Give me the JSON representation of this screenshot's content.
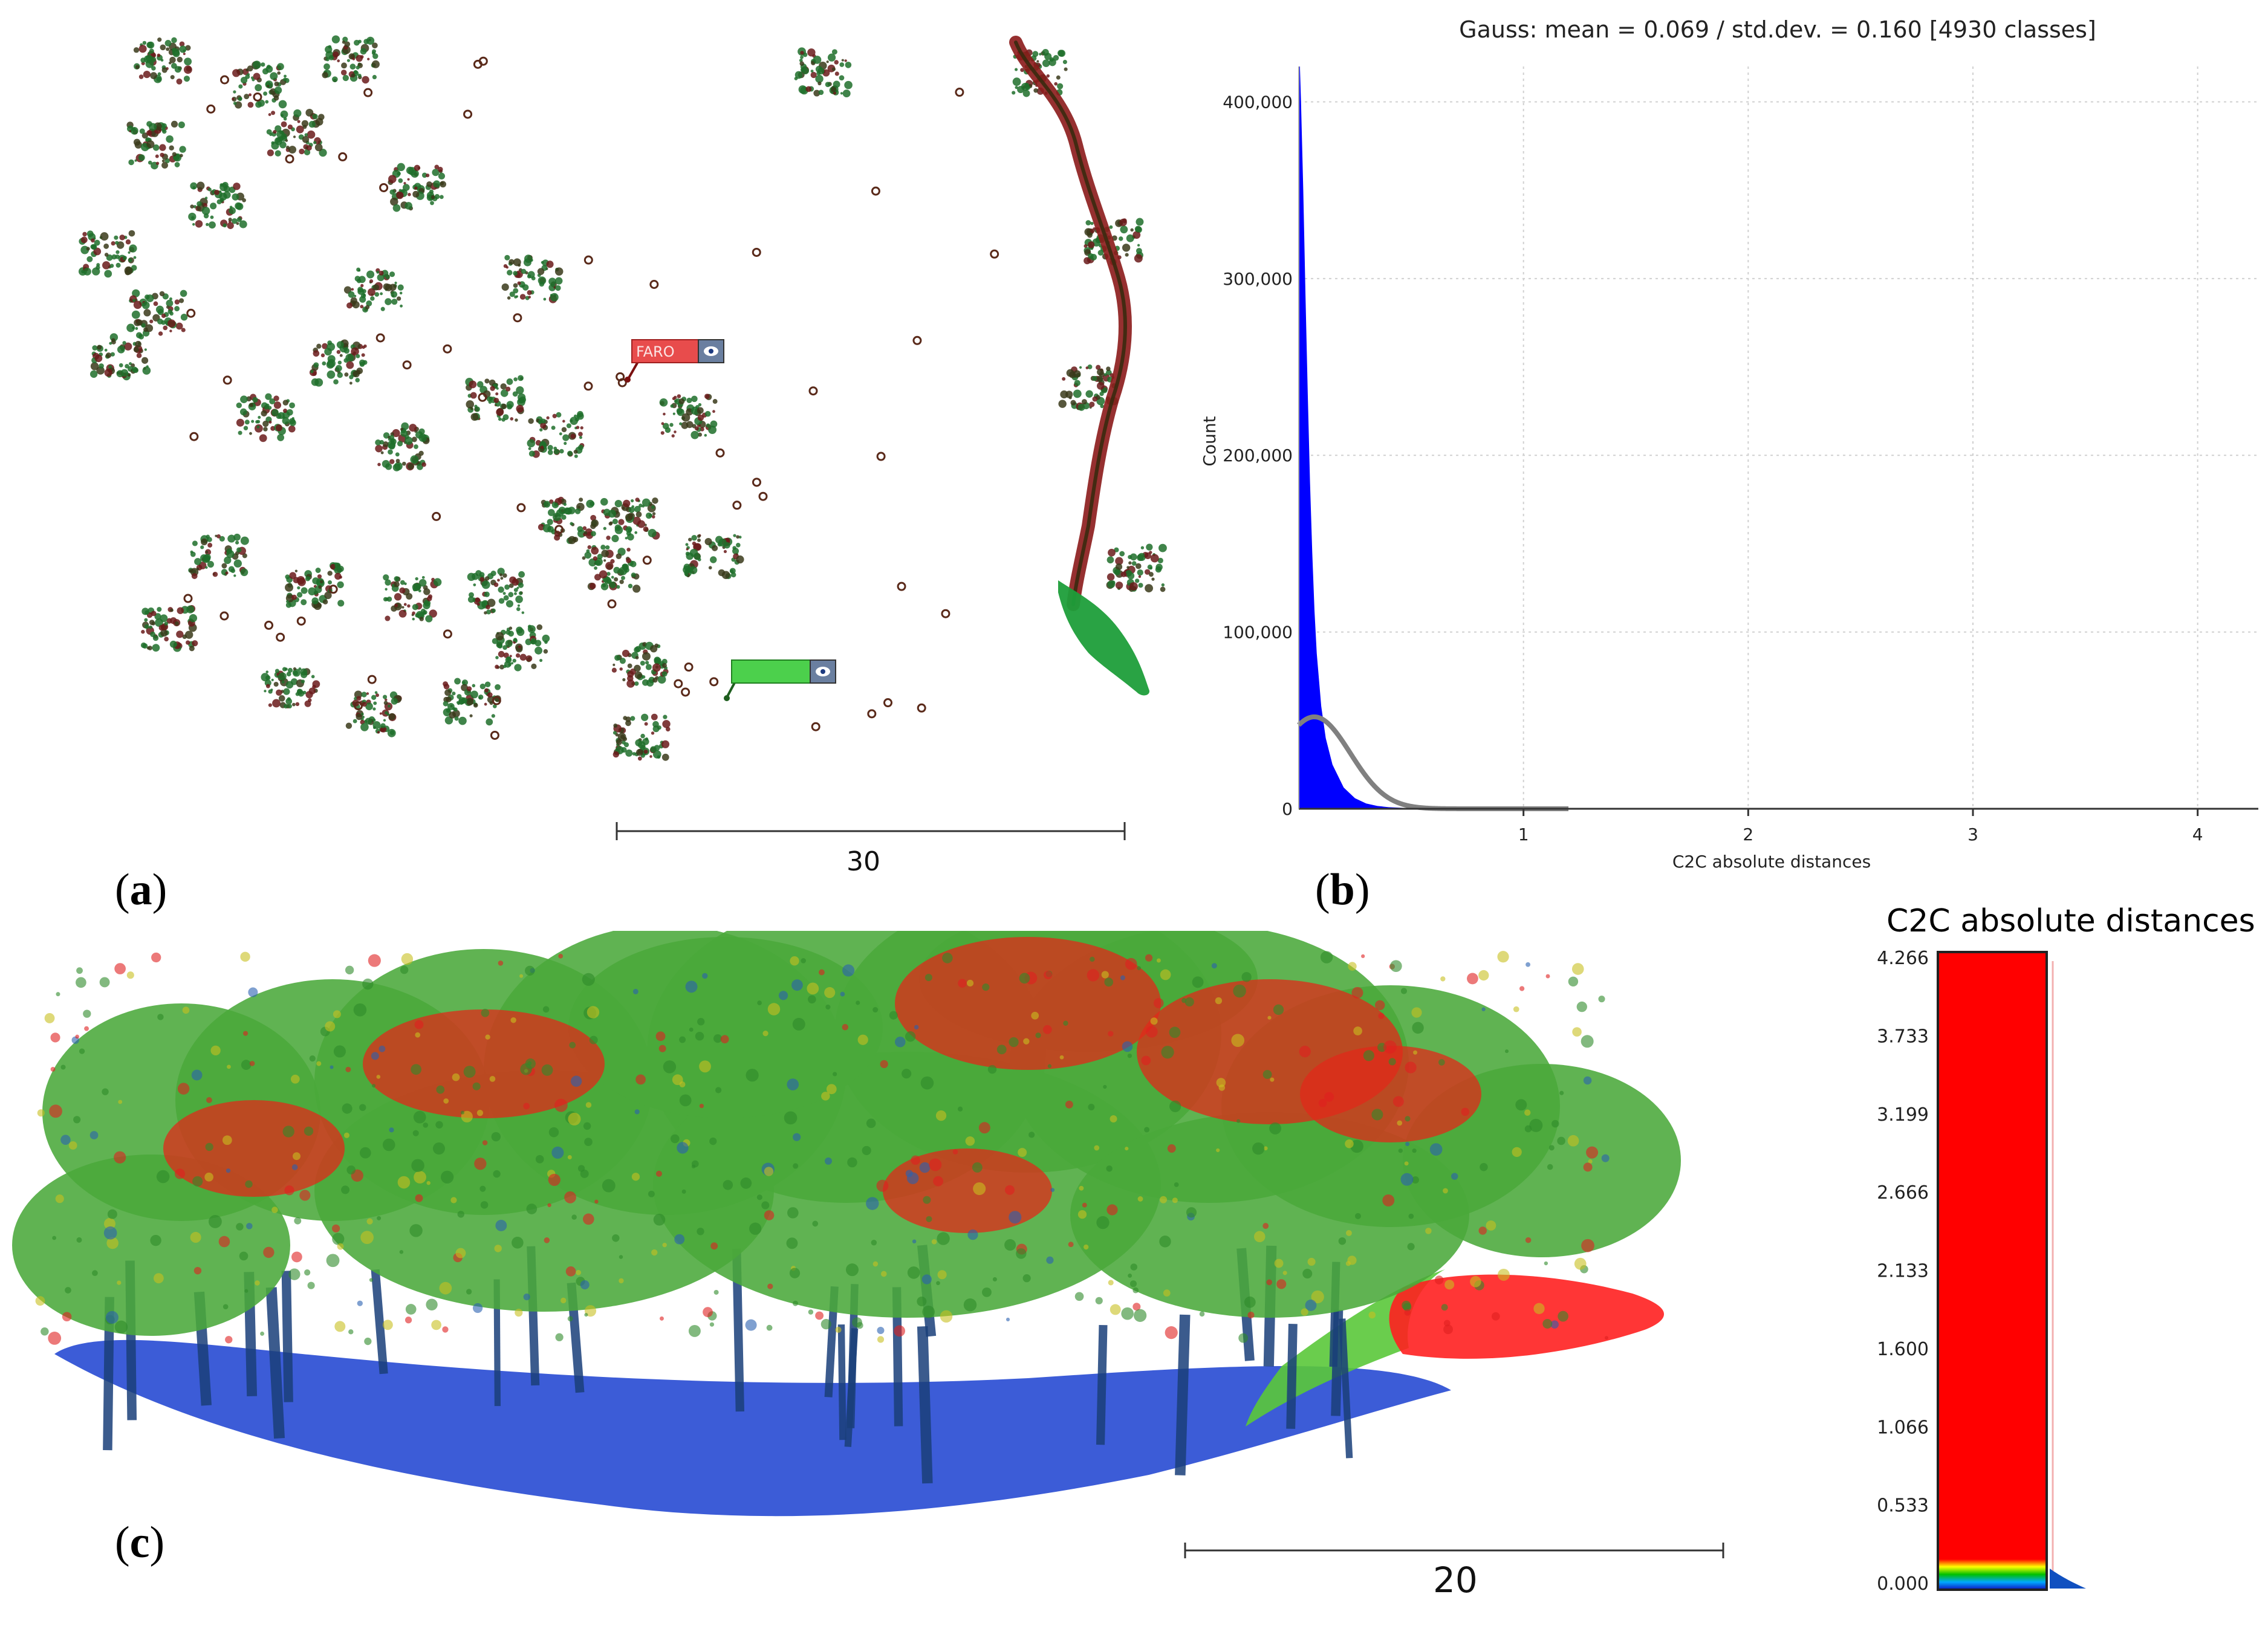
{
  "panel_a": {
    "caption_letter": "a",
    "scale_value": "30",
    "tag_red": {
      "label": "FARO",
      "color": "#e84c4c"
    },
    "tag_green": {
      "label": "",
      "color": "#4cd04c"
    }
  },
  "panel_b": {
    "caption_letter": "b"
  },
  "panel_c": {
    "caption_letter": "c",
    "scale_value": "20",
    "colorbar": {
      "title": "C2C absolute distances",
      "ticks": [
        "4.266",
        "3.733",
        "3.199",
        "2.666",
        "2.133",
        "1.600",
        "1.066",
        "0.533",
        "0.000"
      ],
      "colors": {
        "high": "#ff0000",
        "mid": "#ffff00",
        "low": "#00a000",
        "base": "#0000cc"
      }
    }
  },
  "chart_data": {
    "type": "area",
    "title": "Gauss: mean = 0.069 / std.dev. = 0.160 [4930 classes]",
    "xlabel": "C2C absolute distances",
    "ylabel": "Count",
    "xlim": [
      0,
      4.27
    ],
    "ylim": [
      0,
      420000
    ],
    "x_ticks": [
      "1",
      "2",
      "3",
      "4"
    ],
    "x_tick_values": [
      1,
      2,
      3,
      4
    ],
    "y_ticks": [
      "0",
      "100,000",
      "200,000",
      "300,000",
      "400,000"
    ],
    "y_tick_values": [
      0,
      100000,
      200000,
      300000,
      400000
    ],
    "grid": true,
    "series": [
      {
        "type": "area",
        "color": "#0000ff",
        "x": [
          0.0,
          0.005,
          0.01,
          0.02,
          0.03,
          0.04,
          0.05,
          0.06,
          0.07,
          0.08,
          0.1,
          0.12,
          0.15,
          0.2,
          0.25,
          0.3,
          0.35,
          0.4,
          0.5,
          0.6,
          0.8,
          1.0,
          4.27
        ],
        "values": [
          420000,
          420000,
          400000,
          350000,
          290000,
          235000,
          185000,
          145000,
          112000,
          88000,
          58000,
          40000,
          25000,
          12000,
          6000,
          3000,
          1600,
          900,
          300,
          100,
          30,
          10,
          0
        ]
      },
      {
        "type": "line",
        "color": "#808080",
        "gauss_mean": 0.069,
        "gauss_std": 0.16,
        "gauss_peak": 52000
      }
    ]
  }
}
